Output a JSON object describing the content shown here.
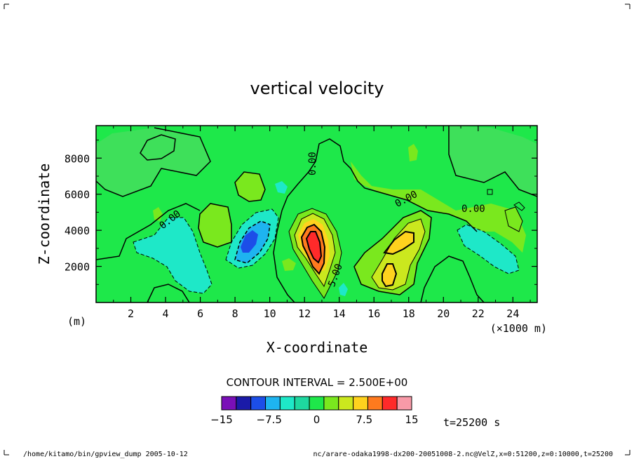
{
  "chart_data": {
    "type": "contour",
    "title": "vertical velocity",
    "xlabel": "X-coordinate",
    "ylabel": "Z-coordinate",
    "x_unit_label": "(×1000 m)",
    "y_unit_label": "(m)",
    "xlim": [
      0,
      25.4
    ],
    "ylim": [
      0,
      9800
    ],
    "x_ticks": [
      2,
      4,
      6,
      8,
      10,
      12,
      14,
      16,
      18,
      20,
      22,
      24
    ],
    "y_ticks": [
      2000,
      4000,
      6000,
      8000
    ],
    "contour_interval_text": "CONTOUR INTERVAL = 2.500E+00",
    "contour_labels": [
      "0.00",
      "0.00",
      "0.00",
      "0.00",
      "5.00"
    ],
    "colorbar": {
      "levels": [
        -15,
        -12.5,
        -10,
        -7.5,
        -5,
        -2.5,
        0,
        2.5,
        5,
        7.5,
        10,
        12.5,
        15
      ],
      "tick_labels": [
        "−15",
        "−7.5",
        "0",
        "7.5",
        "15"
      ],
      "colors": [
        "#7a0fb8",
        "#1a1aa8",
        "#1c4ee8",
        "#1eb4f0",
        "#1ee8c8",
        "#1ed8a0",
        "#1ee84a",
        "#7ae81e",
        "#cbe81e",
        "#ffd21e",
        "#ff7a1e",
        "#ff2a2a",
        "#f89aa8"
      ]
    },
    "fields": {
      "background_color": "#1ee84a",
      "features": [
        {
          "kind": "updraft-core",
          "x": 12.9,
          "z": 3300,
          "max_value": 12.5
        },
        {
          "kind": "updraft",
          "x": 17.5,
          "z": 2900,
          "max_value": 5
        },
        {
          "kind": "downdraft-core",
          "x": 8.9,
          "z": 3500,
          "min_value": -10
        },
        {
          "kind": "downdraft",
          "x": 4.4,
          "z": 2200,
          "min_value": -2.5
        },
        {
          "kind": "downdraft",
          "x": 22.7,
          "z": 3100,
          "min_value": -2.5
        }
      ]
    },
    "time_text": "t=25200 s"
  },
  "footer": {
    "left": "/home/kitamo/bin/gpview_dump  2005-10-12",
    "right": "nc/arare-odaka1998-dx200-20051008-2.nc@VelZ,x=0:51200,z=0:10000,t=25200"
  }
}
